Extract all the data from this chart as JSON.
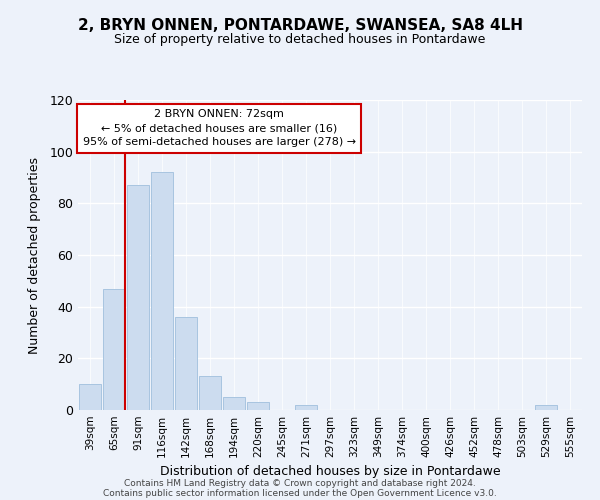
{
  "title": "2, BRYN ONNEN, PONTARDAWE, SWANSEA, SA8 4LH",
  "subtitle": "Size of property relative to detached houses in Pontardawe",
  "xlabel": "Distribution of detached houses by size in Pontardawe",
  "ylabel": "Number of detached properties",
  "bin_labels": [
    "39sqm",
    "65sqm",
    "91sqm",
    "116sqm",
    "142sqm",
    "168sqm",
    "194sqm",
    "220sqm",
    "245sqm",
    "271sqm",
    "297sqm",
    "323sqm",
    "349sqm",
    "374sqm",
    "400sqm",
    "426sqm",
    "452sqm",
    "478sqm",
    "503sqm",
    "529sqm",
    "555sqm"
  ],
  "bar_heights": [
    10,
    47,
    87,
    92,
    36,
    13,
    5,
    3,
    0,
    2,
    0,
    0,
    0,
    0,
    0,
    0,
    0,
    0,
    0,
    2,
    0
  ],
  "bar_color": "#ccdcef",
  "bar_edge_color": "#a8c4e0",
  "ylim": [
    0,
    120
  ],
  "yticks": [
    0,
    20,
    40,
    60,
    80,
    100,
    120
  ],
  "marker_line_color": "#cc0000",
  "annotation_title": "2 BRYN ONNEN: 72sqm",
  "annotation_line1": "← 5% of detached houses are smaller (16)",
  "annotation_line2": "95% of semi-detached houses are larger (278) →",
  "annotation_box_color": "#ffffff",
  "annotation_border_color": "#cc0000",
  "footer_line1": "Contains HM Land Registry data © Crown copyright and database right 2024.",
  "footer_line2": "Contains public sector information licensed under the Open Government Licence v3.0.",
  "background_color": "#edf2fa",
  "plot_bg_color": "#edf2fa",
  "grid_color": "#ffffff",
  "title_fontsize": 11,
  "subtitle_fontsize": 9,
  "xlabel_fontsize": 9,
  "ylabel_fontsize": 9,
  "tick_fontsize": 7.5,
  "annotation_fontsize": 8,
  "footer_fontsize": 6.5
}
